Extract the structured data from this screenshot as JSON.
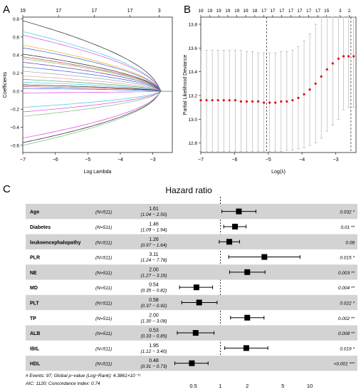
{
  "panel_labels": {
    "a": "A",
    "b": "B",
    "c": "C"
  },
  "chart_data": [
    {
      "type": "line",
      "panel": "A",
      "xlabel": "Log Lambda",
      "ylabel": "Coefficients",
      "xlim": [
        -7,
        -2.4
      ],
      "ylim": [
        -0.68,
        0.82
      ],
      "x_ticks": [
        -7,
        -6,
        -5,
        -4,
        -3
      ],
      "y_ticks": [
        -0.6,
        -0.4,
        -0.2,
        0.0,
        0.2,
        0.4,
        0.6,
        0.8
      ],
      "top_axis": {
        "positions": [
          -7,
          -5.9,
          -4.8,
          -3.7,
          -2.8
        ],
        "labels": [
          "19",
          "17",
          "17",
          "17",
          "3"
        ]
      },
      "series_start_values": [
        0.78,
        0.66,
        0.62,
        0.51,
        0.48,
        0.41,
        0.38,
        0.36,
        0.32,
        0.27,
        0.22,
        0.17,
        0.13,
        0.1,
        0.07,
        0.05,
        0.03,
        -0.02,
        -0.18,
        -0.23,
        -0.28,
        -0.52,
        -0.57,
        -0.6
      ],
      "series_colors": [
        "#222222",
        "#40c8e0",
        "#e040e0",
        "#f0b000",
        "#3060e0",
        "#222222",
        "#c83a3a",
        "#70c070",
        "#7030a0",
        "#3060e0",
        "#9aa8b0",
        "#e0a0b0",
        "#60a060",
        "#40c8e0",
        "#222222",
        "#c83a3a",
        "#3060e0",
        "#e040e0",
        "#40c8e0",
        "#e040e0",
        "#70c070",
        "#e040e0",
        "#222222",
        "#70c070"
      ]
    },
    {
      "type": "scatter",
      "panel": "B",
      "xlabel": "Log(λ)",
      "ylabel": "Partial Likelihood Deviance",
      "xlim": [
        -7,
        -2.4
      ],
      "ylim": [
        12.72,
        13.86
      ],
      "x_ticks": [
        -7,
        -6,
        -5,
        -4,
        -3
      ],
      "y_ticks": [
        12.8,
        13.0,
        13.2,
        13.4,
        13.6,
        13.8
      ],
      "top_axis": {
        "positions": [
          -7,
          -6.73,
          -6.47,
          -6.2,
          -5.93,
          -5.67,
          -5.4,
          -5.13,
          -4.87,
          -4.6,
          -4.33,
          -4.07,
          -3.8,
          -3.53,
          -3.27,
          -2.87,
          -2.6
        ],
        "labels": [
          "19",
          "19",
          "19",
          "19",
          "19",
          "19",
          "18",
          "17",
          "17",
          "17",
          "17",
          "17",
          "17",
          "17",
          "15",
          "3",
          "2"
        ]
      },
      "vlines": [
        -5.05,
        -2.55
      ],
      "points": [
        [
          -7.0,
          13.16,
          12.73,
          13.58
        ],
        [
          -6.83,
          13.16,
          12.73,
          13.58
        ],
        [
          -6.66,
          13.16,
          12.73,
          13.58
        ],
        [
          -6.49,
          13.16,
          12.73,
          13.58
        ],
        [
          -6.32,
          13.16,
          12.73,
          13.58
        ],
        [
          -6.15,
          13.16,
          12.73,
          13.58
        ],
        [
          -5.98,
          13.16,
          12.73,
          13.58
        ],
        [
          -5.81,
          13.15,
          12.73,
          13.58
        ],
        [
          -5.64,
          13.15,
          12.73,
          13.57
        ],
        [
          -5.47,
          13.15,
          12.73,
          13.57
        ],
        [
          -5.3,
          13.15,
          12.73,
          13.56
        ],
        [
          -5.13,
          13.14,
          12.73,
          13.56
        ],
        [
          -4.96,
          13.14,
          12.73,
          13.56
        ],
        [
          -4.79,
          13.14,
          12.73,
          13.56
        ],
        [
          -4.62,
          13.15,
          12.73,
          13.57
        ],
        [
          -4.45,
          13.15,
          12.74,
          13.57
        ],
        [
          -4.28,
          13.16,
          12.74,
          13.58
        ],
        [
          -4.11,
          13.18,
          12.75,
          13.61
        ],
        [
          -3.94,
          13.21,
          12.76,
          13.66
        ],
        [
          -3.77,
          13.25,
          12.78,
          13.72
        ],
        [
          -3.6,
          13.3,
          12.8,
          13.8
        ],
        [
          -3.43,
          13.36,
          12.84,
          13.86
        ],
        [
          -3.26,
          13.42,
          12.9,
          13.86
        ],
        [
          -3.09,
          13.47,
          12.95,
          13.86
        ],
        [
          -2.92,
          13.51,
          13.0,
          13.86
        ],
        [
          -2.77,
          13.53,
          13.08,
          13.86
        ],
        [
          -2.62,
          13.53,
          13.1,
          13.86
        ],
        [
          -2.47,
          13.53,
          13.1,
          13.86
        ]
      ]
    },
    {
      "type": "forest",
      "panel": "C",
      "title": "Hazard ratio",
      "x_scale": "log",
      "xlim": [
        0.28,
        12
      ],
      "x_ticks": [
        0.5,
        1,
        2,
        5,
        10
      ],
      "x_tick_labels": [
        "0.5",
        "1",
        "2",
        "5",
        "10"
      ],
      "reference_line": 1,
      "rows": [
        {
          "variable": "Age",
          "n": "(N=511)",
          "hr": 1.61,
          "lower": 1.04,
          "upper": 2.5,
          "hr_label": "1.61",
          "ci_label": "(1.04 − 2.50)",
          "p": "0.032 *"
        },
        {
          "variable": "Diabetes",
          "n": "(N=511)",
          "hr": 1.46,
          "lower": 1.09,
          "upper": 1.94,
          "hr_label": "1.46",
          "ci_label": "(1.09 − 1.94)",
          "p": "0.01 **"
        },
        {
          "variable": "leukoencephalopathy",
          "n": "(N=511)",
          "hr": 1.26,
          "lower": 0.97,
          "upper": 1.64,
          "hr_label": "1.26",
          "ci_label": "(0.97 − 1.64)",
          "p": "0.08"
        },
        {
          "variable": "PLR",
          "n": "(N=511)",
          "hr": 3.11,
          "lower": 1.24,
          "upper": 7.78,
          "hr_label": "3.11",
          "ci_label": "(1.24 − 7.78)",
          "p": "0.015 *"
        },
        {
          "variable": "NE",
          "n": "(N=511)",
          "hr": 2.0,
          "lower": 1.27,
          "upper": 3.16,
          "hr_label": "2.00",
          "ci_label": "(1.27 − 3.16)",
          "p": "0.003 **"
        },
        {
          "variable": "MD",
          "n": "(N=511)",
          "hr": 0.54,
          "lower": 0.35,
          "upper": 0.82,
          "hr_label": "0.54",
          "ci_label": "(0.35 − 0.82)",
          "p": "0.004 **"
        },
        {
          "variable": "PLT",
          "n": "(N=511)",
          "hr": 0.58,
          "lower": 0.37,
          "upper": 0.92,
          "hr_label": "0.58",
          "ci_label": "(0.37 − 0.92)",
          "p": "0.022 *"
        },
        {
          "variable": "TP",
          "n": "(N=511)",
          "hr": 2.0,
          "lower": 1.3,
          "upper": 3.08,
          "hr_label": "2.00",
          "ci_label": "(1.30 − 3.08)",
          "p": "0.002 **"
        },
        {
          "variable": "ALB",
          "n": "(N=511)",
          "hr": 0.53,
          "lower": 0.33,
          "upper": 0.85,
          "hr_label": "0.53",
          "ci_label": "(0.33 − 0.85)",
          "p": "0.008 **"
        },
        {
          "variable": "IBIL",
          "n": "(N=511)",
          "hr": 1.95,
          "lower": 1.12,
          "upper": 3.4,
          "hr_label": "1.95",
          "ci_label": "(1.12 − 3.40)",
          "p": "0.019 *"
        },
        {
          "variable": "HDL",
          "n": "(N=511)",
          "hr": 0.48,
          "lower": 0.31,
          "upper": 0.73,
          "hr_label": "0.48",
          "ci_label": "(0.31 − 0.73)",
          "p": "<0.001 ***"
        }
      ],
      "footnote_1": "# Events: 97; Global p−value (Log−Rank): 4.3861×10⁻¹¹",
      "footnote_2": "AIC: 1120; Concordance Index: 0.74"
    }
  ]
}
